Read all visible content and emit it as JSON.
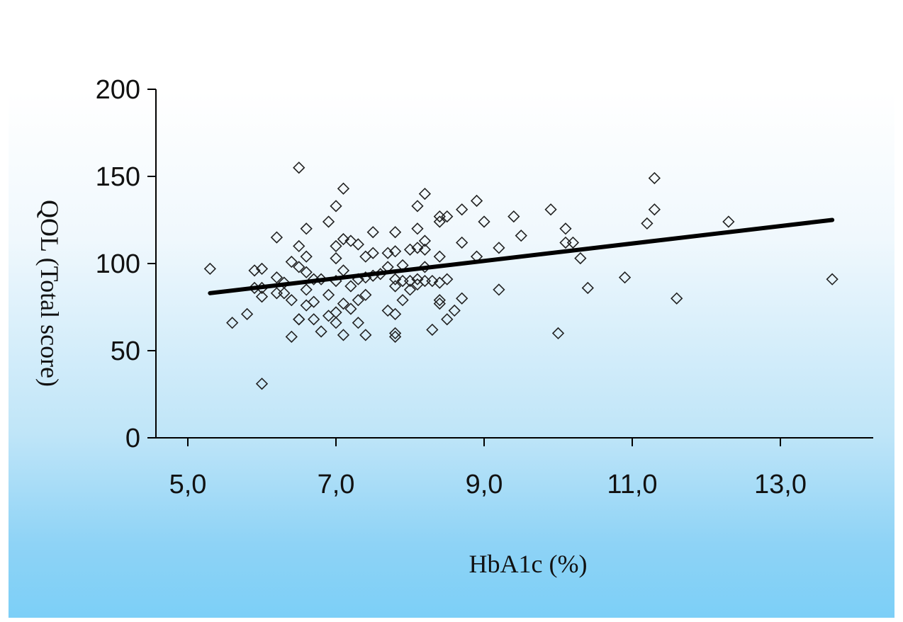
{
  "chart_data": {
    "type": "scatter",
    "title": "",
    "xlabel": "HbA1c (%)",
    "ylabel": "QOL (Total score)",
    "xlim": [
      5.0,
      14.0
    ],
    "ylim": [
      0,
      200
    ],
    "x_ticks": [
      5,
      7,
      9,
      11,
      13
    ],
    "x_tick_labels": [
      "5,0",
      "7,0",
      "9,0",
      "11,0",
      "13,0"
    ],
    "y_ticks": [
      0,
      50,
      100,
      150,
      200
    ],
    "y_tick_labels": [
      "0",
      "50",
      "100",
      "150",
      "200"
    ],
    "grid": false,
    "legend": "none",
    "marker": "diamond-open",
    "colors": {
      "marker": "#222222",
      "line": "#000000",
      "axis": "#000000"
    },
    "points": [
      [
        5.3,
        97
      ],
      [
        5.6,
        66
      ],
      [
        5.8,
        71
      ],
      [
        5.9,
        96
      ],
      [
        5.9,
        86
      ],
      [
        6.0,
        97
      ],
      [
        6.0,
        81
      ],
      [
        6.0,
        31
      ],
      [
        6.0,
        86
      ],
      [
        6.2,
        115
      ],
      [
        6.2,
        92
      ],
      [
        6.2,
        83
      ],
      [
        6.3,
        83
      ],
      [
        6.3,
        89
      ],
      [
        6.4,
        101
      ],
      [
        6.4,
        79
      ],
      [
        6.4,
        58
      ],
      [
        6.5,
        155
      ],
      [
        6.5,
        110
      ],
      [
        6.5,
        98
      ],
      [
        6.5,
        68
      ],
      [
        6.5,
        68
      ],
      [
        6.6,
        120
      ],
      [
        6.6,
        104
      ],
      [
        6.6,
        95
      ],
      [
        6.6,
        85
      ],
      [
        6.6,
        76
      ],
      [
        6.7,
        91
      ],
      [
        6.7,
        78
      ],
      [
        6.7,
        68
      ],
      [
        6.8,
        91
      ],
      [
        6.8,
        61
      ],
      [
        6.9,
        124
      ],
      [
        6.9,
        82
      ],
      [
        6.9,
        70
      ],
      [
        7.0,
        133
      ],
      [
        7.0,
        110
      ],
      [
        7.0,
        103
      ],
      [
        7.0,
        90
      ],
      [
        7.0,
        72
      ],
      [
        7.0,
        66
      ],
      [
        7.1,
        143
      ],
      [
        7.1,
        114
      ],
      [
        7.1,
        96
      ],
      [
        7.1,
        77
      ],
      [
        7.1,
        59
      ],
      [
        7.2,
        113
      ],
      [
        7.2,
        87
      ],
      [
        7.2,
        74
      ],
      [
        7.3,
        111
      ],
      [
        7.3,
        91
      ],
      [
        7.3,
        79
      ],
      [
        7.3,
        66
      ],
      [
        7.4,
        104
      ],
      [
        7.4,
        92
      ],
      [
        7.4,
        82
      ],
      [
        7.4,
        59
      ],
      [
        7.5,
        118
      ],
      [
        7.5,
        106
      ],
      [
        7.5,
        93
      ],
      [
        7.6,
        94
      ],
      [
        7.7,
        106
      ],
      [
        7.7,
        98
      ],
      [
        7.7,
        73
      ],
      [
        7.8,
        118
      ],
      [
        7.8,
        107
      ],
      [
        7.8,
        91
      ],
      [
        7.8,
        87
      ],
      [
        7.8,
        71
      ],
      [
        7.8,
        60
      ],
      [
        7.8,
        58
      ],
      [
        7.9,
        99
      ],
      [
        7.9,
        90
      ],
      [
        7.9,
        79
      ],
      [
        8.0,
        108
      ],
      [
        8.0,
        90
      ],
      [
        8.0,
        85
      ],
      [
        8.1,
        133
      ],
      [
        8.1,
        120
      ],
      [
        8.1,
        109
      ],
      [
        8.1,
        91
      ],
      [
        8.1,
        88
      ],
      [
        8.2,
        140
      ],
      [
        8.2,
        113
      ],
      [
        8.2,
        108
      ],
      [
        8.2,
        98
      ],
      [
        8.2,
        90
      ],
      [
        8.3,
        90
      ],
      [
        8.3,
        62
      ],
      [
        8.4,
        127
      ],
      [
        8.4,
        124
      ],
      [
        8.4,
        104
      ],
      [
        8.4,
        89
      ],
      [
        8.4,
        79
      ],
      [
        8.4,
        77
      ],
      [
        8.5,
        127
      ],
      [
        8.5,
        91
      ],
      [
        8.5,
        68
      ],
      [
        8.6,
        73
      ],
      [
        8.7,
        131
      ],
      [
        8.7,
        112
      ],
      [
        8.7,
        80
      ],
      [
        8.9,
        136
      ],
      [
        8.9,
        104
      ],
      [
        9.0,
        124
      ],
      [
        9.2,
        109
      ],
      [
        9.2,
        85
      ],
      [
        9.4,
        127
      ],
      [
        9.5,
        116
      ],
      [
        9.9,
        131
      ],
      [
        10.0,
        60
      ],
      [
        10.1,
        120
      ],
      [
        10.1,
        112
      ],
      [
        10.2,
        112
      ],
      [
        10.3,
        103
      ],
      [
        10.4,
        86
      ],
      [
        10.9,
        92
      ],
      [
        11.2,
        123
      ],
      [
        11.3,
        149
      ],
      [
        11.3,
        131
      ],
      [
        11.6,
        80
      ],
      [
        12.3,
        124
      ],
      [
        13.7,
        91
      ]
    ],
    "trendline": {
      "x": [
        5.3,
        13.7
      ],
      "y": [
        83,
        125
      ]
    }
  }
}
